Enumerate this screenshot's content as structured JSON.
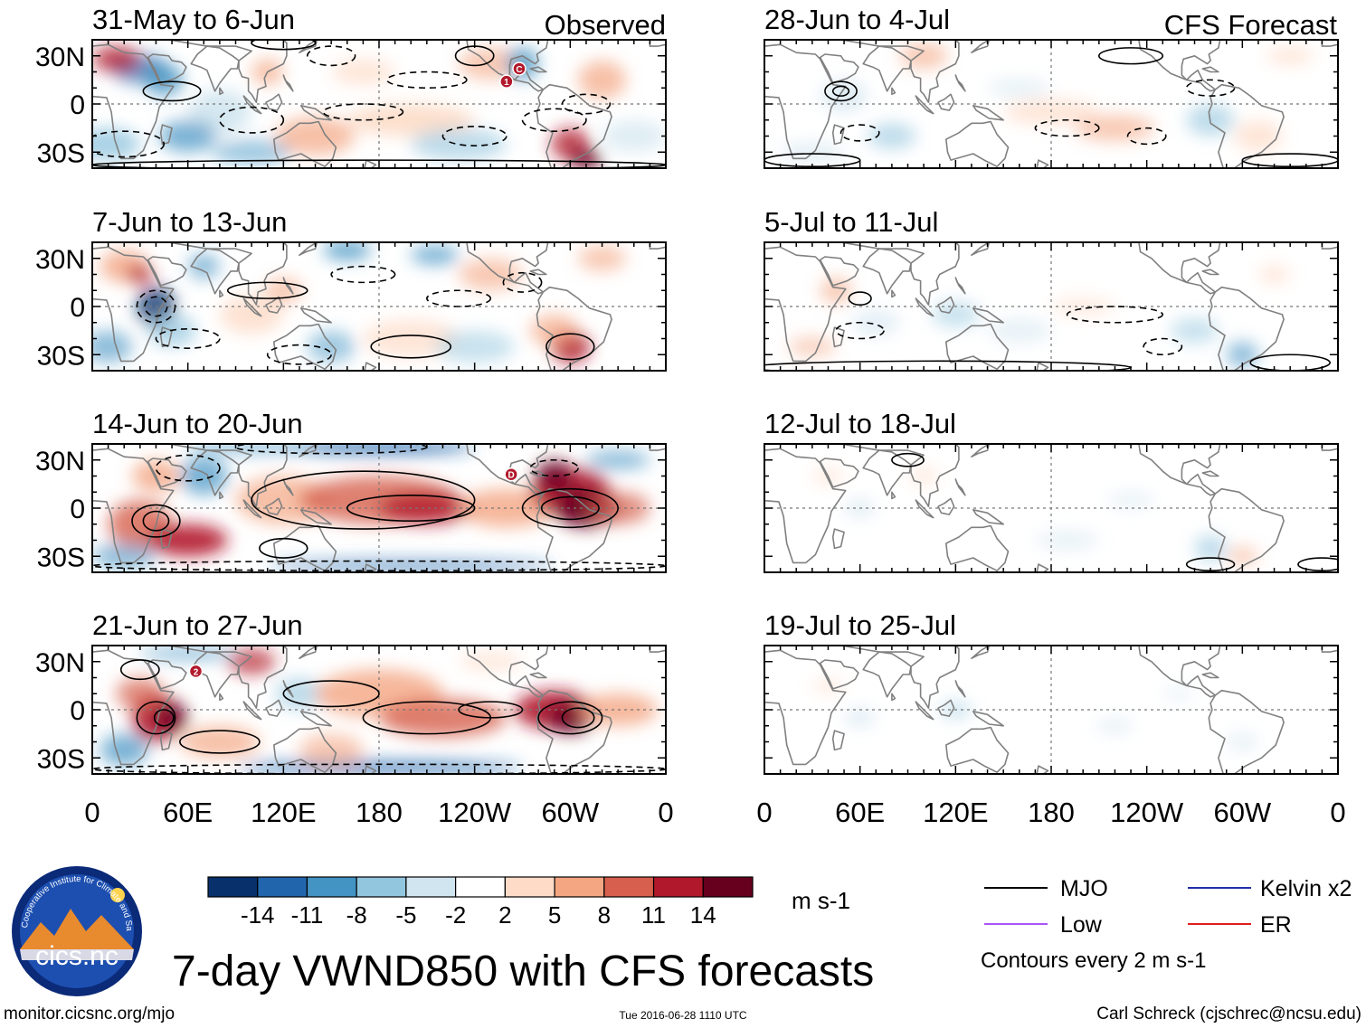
{
  "chart_data": {
    "type": "heatmap",
    "title": "7-day VWND850 with CFS forecasts",
    "variable": "VWND850",
    "units": "m s-1",
    "column_titles": [
      "Observed",
      "CFS Forecast"
    ],
    "observed_panels": [
      {
        "label": "31-May to 6-Jun"
      },
      {
        "label": "7-Jun to 13-Jun"
      },
      {
        "label": "14-Jun to 20-Jun"
      },
      {
        "label": "21-Jun to 27-Jun"
      }
    ],
    "forecast_panels": [
      {
        "label": "28-Jun to 4-Jul"
      },
      {
        "label": "5-Jul to 11-Jul"
      },
      {
        "label": "12-Jul to 18-Jul"
      },
      {
        "label": "19-Jul to 25-Jul"
      }
    ],
    "x_ticks": [
      {
        "lon": 0,
        "label": "0"
      },
      {
        "lon": 60,
        "label": "60E"
      },
      {
        "lon": 120,
        "label": "120E"
      },
      {
        "lon": 180,
        "label": "180"
      },
      {
        "lon": 240,
        "label": "120W"
      },
      {
        "lon": 300,
        "label": "60W"
      },
      {
        "lon": 360,
        "label": "0"
      }
    ],
    "y_ticks": [
      {
        "lat": 30,
        "label": "30N"
      },
      {
        "lat": 0,
        "label": "0"
      },
      {
        "lat": -30,
        "label": "30S"
      }
    ],
    "xlim": [
      0,
      360
    ],
    "ylim": [
      -40,
      40
    ],
    "storm_markers": [
      {
        "panel": 0,
        "lon": 260,
        "lat": 14,
        "label": "1"
      },
      {
        "panel": 0,
        "lon": 268,
        "lat": 22,
        "label": "C"
      },
      {
        "panel": 2,
        "lon": 263,
        "lat": 21,
        "label": "D"
      },
      {
        "panel": 3,
        "lon": 65,
        "lat": 24,
        "label": "2"
      }
    ],
    "colorbar": {
      "colors": [
        "#08306b",
        "#2166ac",
        "#4393c3",
        "#92c5de",
        "#d1e5f0",
        "#ffffff",
        "#fddbc7",
        "#f4a582",
        "#d6604d",
        "#b2182b",
        "#67001f"
      ],
      "tick_labels": [
        "-14",
        "-11",
        "-8",
        "-5",
        "-2",
        "2",
        "5",
        "8",
        "11",
        "14"
      ]
    },
    "legend": [
      {
        "label": "MJO",
        "color": "#000000"
      },
      {
        "label": "Low",
        "color": "#a855f7"
      },
      {
        "label": "Kelvin x2",
        "color": "#1f2fa8"
      },
      {
        "label": "ER",
        "color": "#e11d1d"
      }
    ],
    "contour_note": "Contours every 2 m s-1"
  },
  "logo_text": "cics.nc",
  "logo_ring_text": "Cooperative Institute for Climate and Satellites",
  "footer": {
    "url": "monitor.cicsnc.org/mjo",
    "timestamp": "Tue 2016-06-28 1110 UTC",
    "author": "Carl Schreck (cjschrec@ncsu.edu)"
  }
}
